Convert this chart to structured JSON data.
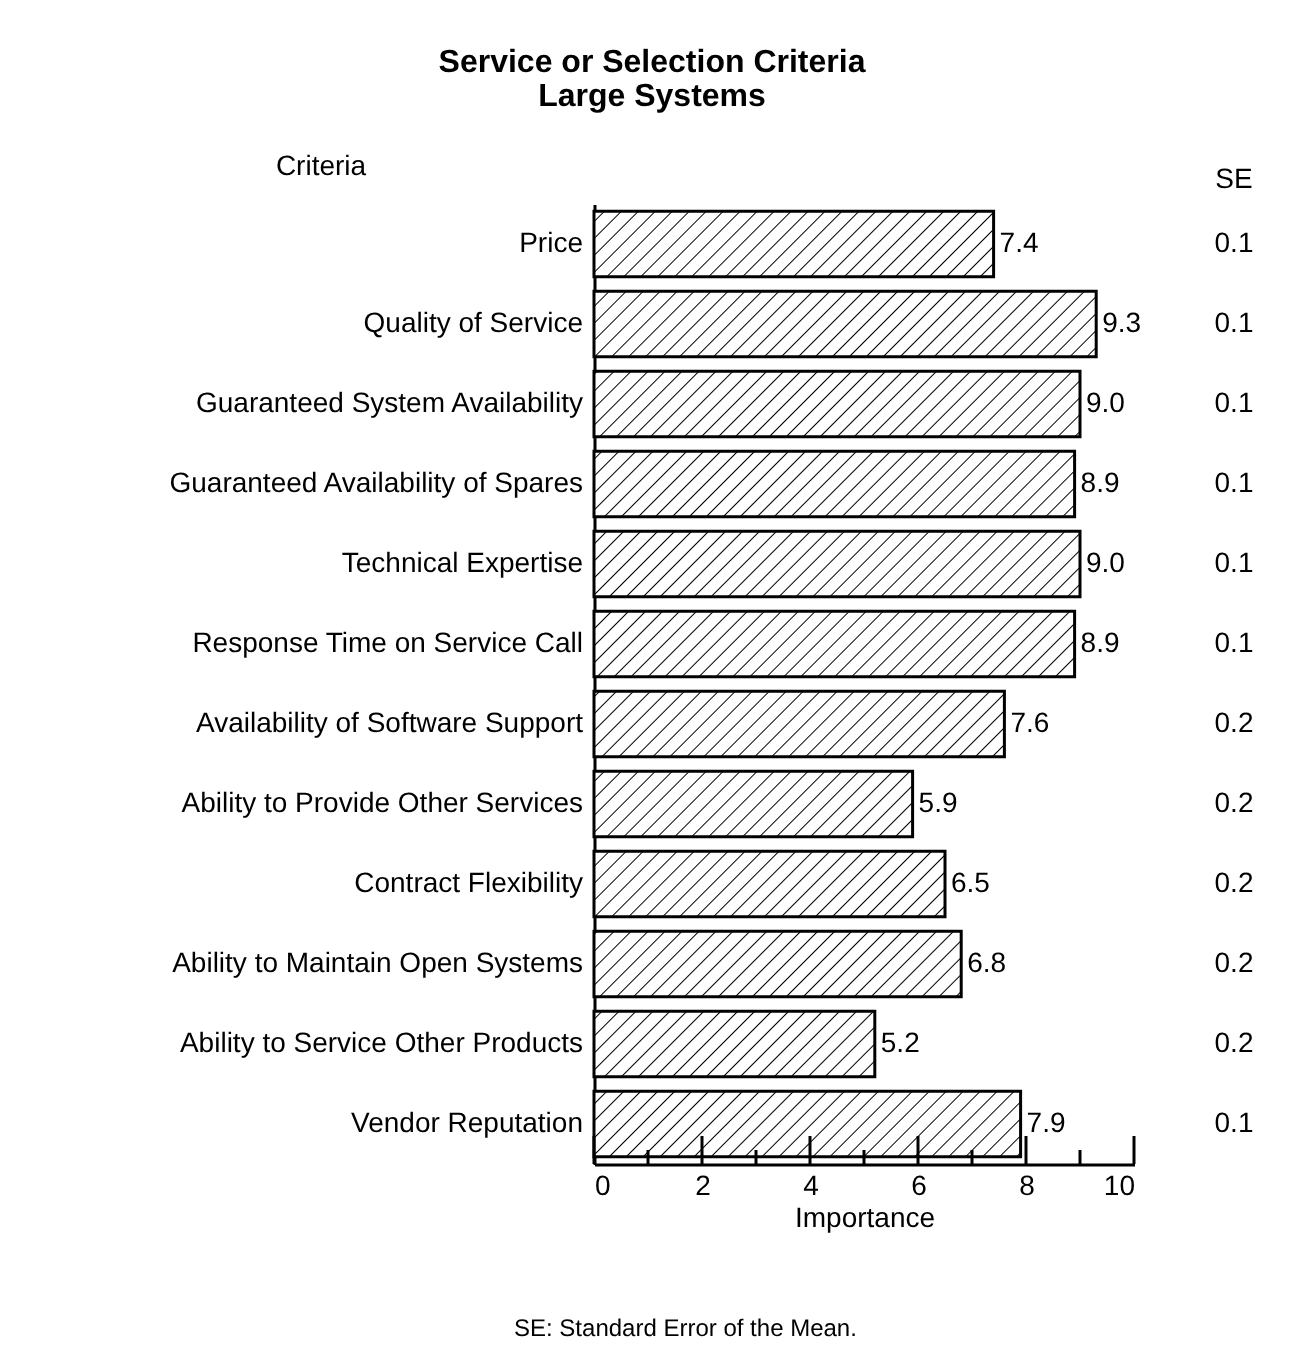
{
  "chart_data": {
    "type": "bar",
    "orientation": "horizontal",
    "title": "Service or Selection Criteria",
    "subtitle": "Large Systems",
    "xlabel": "Importance",
    "ylabel": "Criteria",
    "categories": [
      "Price",
      "Quality of Service",
      "Guaranteed System Availability",
      "Guaranteed Availability of Spares",
      "Technical Expertise",
      "Response Time on Service Call",
      "Availability of Software Support",
      "Ability to Provide Other Services",
      "Contract Flexibility",
      "Ability to Maintain Open Systems",
      "Ability to Service Other Products",
      "Vendor Reputation"
    ],
    "values": [
      7.4,
      9.3,
      9.0,
      8.9,
      9.0,
      8.9,
      7.6,
      5.9,
      6.5,
      6.8,
      5.2,
      7.9
    ],
    "color": "#000000",
    "value_labels": [
      "7.4",
      "9.3",
      "9.0",
      "8.9",
      "9.0",
      "8.9",
      "7.6",
      "5.9",
      "6.5",
      "6.8",
      "5.2",
      "7.9"
    ],
    "xlim": [
      0,
      10
    ],
    "xticks": [
      0,
      {
        "value": 1,
        "label": null
      },
      2,
      {
        "value": 3,
        "label": null
      },
      4,
      {
        "value": 5,
        "label": null
      },
      6,
      {
        "value": 7,
        "label": null
      },
      8,
      {
        "value": 9,
        "label": null
      },
      10
    ],
    "annotations": [
      "SE",
      "0.1",
      "0.1",
      "0.1",
      "0.1",
      "0.1",
      "0.1",
      "0.2",
      "0.2",
      "0.2",
      "0.2",
      "0.2",
      "0.1",
      "SE: Standard Error of the Mean."
    ]
  }
}
